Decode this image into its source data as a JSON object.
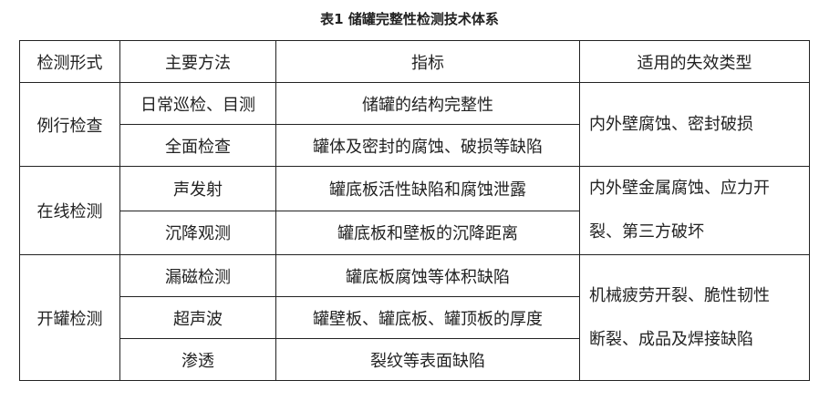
{
  "title": "表1  储罐完整性检测技术体系",
  "headers": [
    "检测形式",
    "主要方法",
    "指标",
    "适用的失效类型"
  ],
  "groups": [
    {
      "form": "例行检查",
      "rows": [
        {
          "method": "日常巡检、目测",
          "indicator": "储罐的结构完整性"
        },
        {
          "method": "全面检查",
          "indicator": "罐体及密封的腐蚀、破损等缺陷"
        }
      ],
      "failure": [
        "内外壁腐蚀、密封破损"
      ]
    },
    {
      "form": "在线检测",
      "rows": [
        {
          "method": "声发射",
          "indicator": "罐底板活性缺陷和腐蚀泄露"
        },
        {
          "method": "沉降观测",
          "indicator": "罐底板和壁板的沉降距离"
        }
      ],
      "failure": [
        "内外壁金属腐蚀、应力开",
        "裂、第三方破坏"
      ]
    },
    {
      "form": "开罐检测",
      "rows": [
        {
          "method": "漏磁检测",
          "indicator": "罐底板腐蚀等体积缺陷"
        },
        {
          "method": "超声波",
          "indicator": "罐壁板、罐底板、罐顶板的厚度"
        },
        {
          "method": "渗透",
          "indicator": "裂纹等表面缺陷"
        }
      ],
      "failure": [
        "机械疲劳开裂、脆性韧性",
        "断裂、成品及焊接缺陷"
      ]
    }
  ]
}
